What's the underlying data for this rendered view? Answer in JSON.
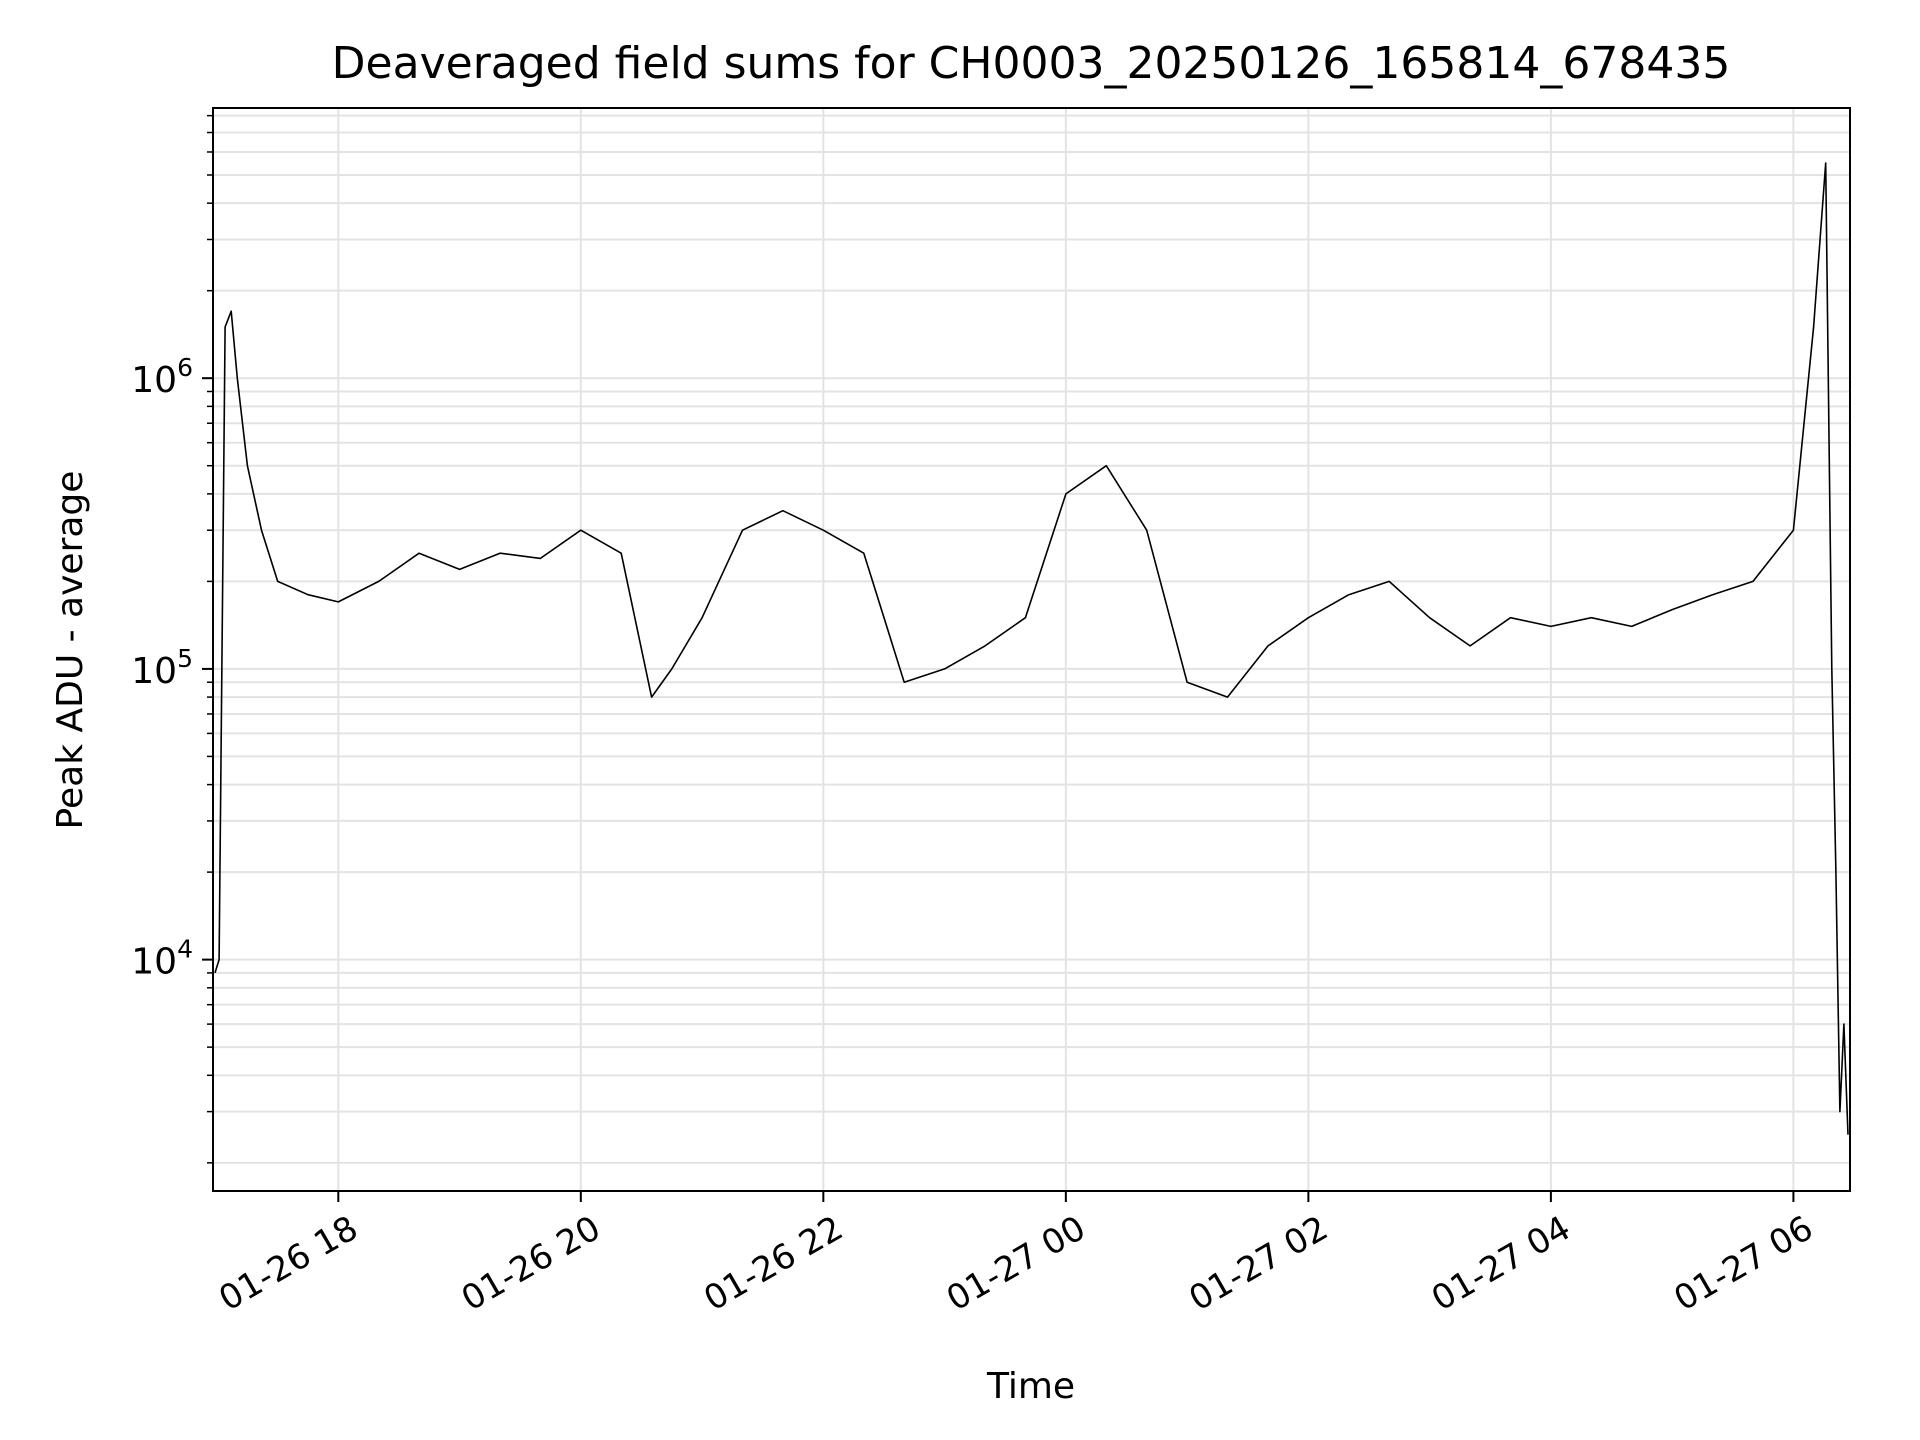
{
  "chart_data": {
    "type": "line",
    "title": "Deaveraged field sums for CH0003_20250126_165814_678435",
    "xlabel": "Time",
    "ylabel": "Peak ADU - average",
    "x_type": "time",
    "xlim": [
      "2025-01-26 16:58",
      "2025-01-27 06:28"
    ],
    "x_ticks": [
      {
        "t": "2025-01-26 18:00",
        "label": "01-26 18"
      },
      {
        "t": "2025-01-26 20:00",
        "label": "01-26 20"
      },
      {
        "t": "2025-01-26 22:00",
        "label": "01-26 22"
      },
      {
        "t": "2025-01-27 00:00",
        "label": "01-27 00"
      },
      {
        "t": "2025-01-27 02:00",
        "label": "01-27 02"
      },
      {
        "t": "2025-01-27 04:00",
        "label": "01-27 04"
      },
      {
        "t": "2025-01-27 06:00",
        "label": "01-27 06"
      }
    ],
    "y_scale": "log",
    "ylim": [
      1600,
      8500000
    ],
    "y_ticks": [
      {
        "base": "10",
        "exp": "4",
        "value": 10000
      },
      {
        "base": "10",
        "exp": "5",
        "value": 100000
      },
      {
        "base": "10",
        "exp": "6",
        "value": 1000000
      }
    ],
    "grid": true,
    "legend": "none",
    "line_color": "#000000",
    "series": [
      {
        "x": [
          "2025-01-26 16:59",
          "2025-01-26 17:01",
          "2025-01-26 17:04",
          "2025-01-26 17:07",
          "2025-01-26 17:10",
          "2025-01-26 17:15",
          "2025-01-26 17:22",
          "2025-01-26 17:30",
          "2025-01-26 17:45",
          "2025-01-26 18:00",
          "2025-01-26 18:20",
          "2025-01-26 18:40",
          "2025-01-26 19:00",
          "2025-01-26 19:20",
          "2025-01-26 19:40",
          "2025-01-26 20:00",
          "2025-01-26 20:20",
          "2025-01-26 20:35",
          "2025-01-26 20:45",
          "2025-01-26 21:00",
          "2025-01-26 21:20",
          "2025-01-26 21:40",
          "2025-01-26 22:00",
          "2025-01-26 22:20",
          "2025-01-26 22:40",
          "2025-01-26 23:00",
          "2025-01-26 23:20",
          "2025-01-26 23:40",
          "2025-01-27 00:00",
          "2025-01-27 00:20",
          "2025-01-27 00:40",
          "2025-01-27 01:00",
          "2025-01-27 01:20",
          "2025-01-27 01:40",
          "2025-01-27 02:00",
          "2025-01-27 02:20",
          "2025-01-27 02:40",
          "2025-01-27 03:00",
          "2025-01-27 03:20",
          "2025-01-27 03:40",
          "2025-01-27 04:00",
          "2025-01-27 04:20",
          "2025-01-27 04:40",
          "2025-01-27 05:00",
          "2025-01-27 05:20",
          "2025-01-27 05:40",
          "2025-01-27 06:00",
          "2025-01-27 06:10",
          "2025-01-27 06:16",
          "2025-01-27 06:19",
          "2025-01-27 06:21",
          "2025-01-27 06:23",
          "2025-01-27 06:25",
          "2025-01-27 06:27"
        ],
        "y": [
          9000,
          10000,
          1500000,
          1700000,
          1000000,
          500000,
          300000,
          200000,
          180000,
          170000,
          200000,
          250000,
          220000,
          250000,
          240000,
          300000,
          250000,
          80000,
          100000,
          150000,
          300000,
          350000,
          300000,
          250000,
          90000,
          100000,
          120000,
          150000,
          400000,
          500000,
          300000,
          90000,
          80000,
          120000,
          150000,
          180000,
          200000,
          150000,
          120000,
          150000,
          140000,
          150000,
          140000,
          160000,
          180000,
          200000,
          300000,
          1500000,
          5500000,
          100000,
          20000,
          3000,
          6000,
          2500
        ]
      }
    ]
  }
}
